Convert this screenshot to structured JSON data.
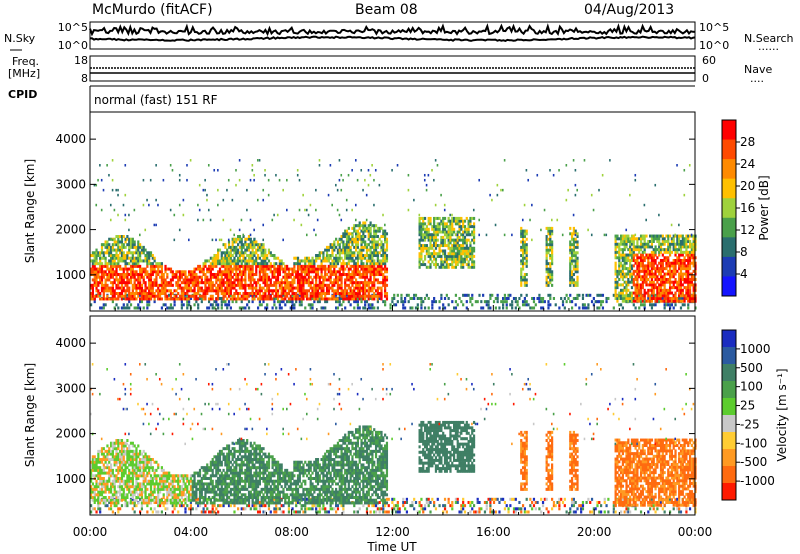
{
  "header": {
    "station": "McMurdo (fitACF)",
    "beam": "Beam 08",
    "date": "04/Aug/2013"
  },
  "scan_panels": {
    "nsky_label": "N.Sky",
    "nsearch_label": "N.Search",
    "freq_label_line1": "Freq.",
    "freq_label_line2": "[MHz]",
    "nave_label": "Nave",
    "cpid_label": "CPID",
    "cpid_text": "normal (fast) 151 RF",
    "dotted_legend": "......",
    "dotted_legend_short": "....",
    "nsky_ticks": [
      "10^5",
      "10^0"
    ],
    "nsearch_ticks": [
      "10^5",
      "10^0"
    ],
    "freq_ticks": [
      "18",
      "8"
    ],
    "nave_ticks": [
      "60",
      "0"
    ]
  },
  "colorbar_power": {
    "label": "Power [dB]",
    "ticks": [
      "28",
      "24",
      "20",
      "16",
      "12",
      "8",
      "4"
    ],
    "colors": [
      "#ff0000",
      "#ff4a00",
      "#ff8a00",
      "#ffc000",
      "#9fd23c",
      "#4aa04a",
      "#2a6e6e",
      "#1c3cb4",
      "#1414ff"
    ]
  },
  "colorbar_velocity": {
    "label": "Velocity [m s⁻¹]",
    "ticks": [
      "1000",
      "500",
      "100",
      "25",
      "-25",
      "-100",
      "-500",
      "-1000"
    ],
    "colors": [
      "#1a2cc0",
      "#2b5aa0",
      "#3f7f65",
      "#4aa04a",
      "#5ccc2e",
      "#c8c8c8",
      "#ffcc33",
      "#ff9a22",
      "#ff6b10",
      "#ff1a00"
    ]
  },
  "chart_data": [
    {
      "type": "heatmap",
      "title": "Power",
      "ylabel": "Slant Range [km]",
      "xlabel": "",
      "x_ticks": [
        "00:00",
        "04:00",
        "08:00",
        "12:00",
        "16:00",
        "20:00",
        "00:00"
      ],
      "y_ticks": [
        1000,
        2000,
        3000,
        4000
      ],
      "ylim": [
        200,
        4600
      ],
      "xlim_hours": [
        0,
        24
      ]
    },
    {
      "type": "heatmap",
      "title": "Velocity",
      "ylabel": "Slant Range [km]",
      "xlabel": "Time UT",
      "x_ticks": [
        "00:00",
        "04:00",
        "08:00",
        "12:00",
        "16:00",
        "20:00",
        "00:00"
      ],
      "y_ticks": [
        1000,
        2000,
        3000,
        4000
      ],
      "ylim": [
        200,
        4600
      ],
      "xlim_hours": [
        0,
        24
      ]
    }
  ]
}
